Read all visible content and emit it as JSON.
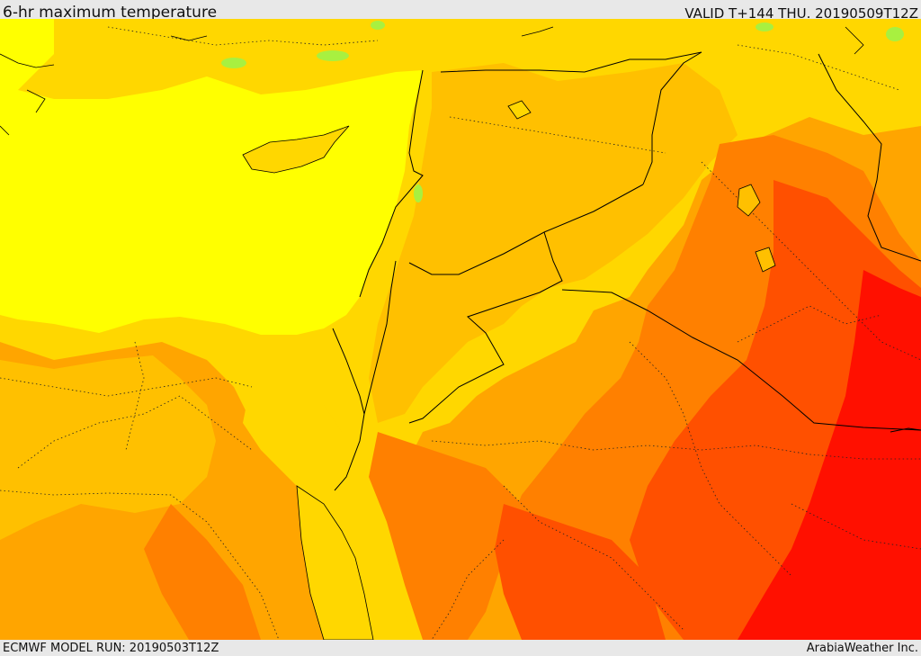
{
  "header": {
    "title": "6-hr maximum temperature",
    "valid_label": "VALID T+144 THU. 20190509T12Z"
  },
  "footer": {
    "model_run": "ECMWF MODEL RUN: 20190503T12Z",
    "credit": "ArabiaWeather Inc."
  },
  "map": {
    "colors": {
      "sea_yellow": "#ffff00",
      "light_gold": "#ffd700",
      "gold": "#ffc000",
      "orange": "#ffa500",
      "dark_orange": "#ff8000",
      "red_orange": "#ff5000",
      "red": "#ff1000",
      "green": "#a8f040",
      "border": "#000000"
    }
  }
}
